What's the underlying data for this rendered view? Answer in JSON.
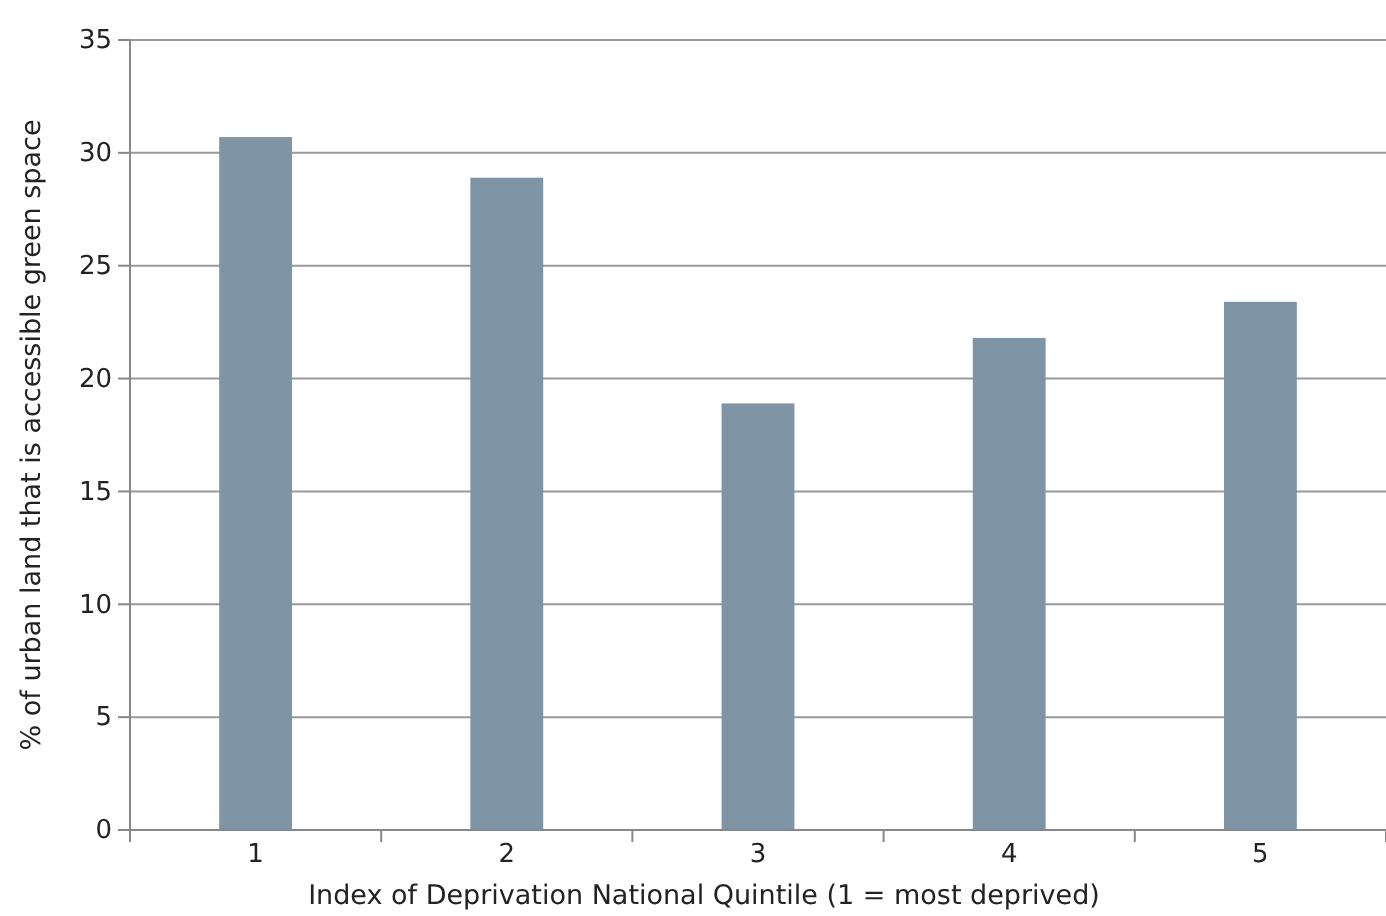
{
  "chart_data": {
    "type": "bar",
    "xlabel": "Index of Deprivation National Quintile (1 = most deprived)",
    "ylabel": "% of urban land that is accessible green space",
    "categories": [
      "1",
      "2",
      "3",
      "4",
      "5"
    ],
    "values": [
      30.7,
      28.9,
      18.9,
      21.8,
      23.4
    ],
    "color": "#7f94a5",
    "ylim": [
      0,
      35
    ],
    "yticks": [
      0,
      5,
      10,
      15,
      20,
      25,
      30,
      35
    ],
    "grid": "y"
  }
}
